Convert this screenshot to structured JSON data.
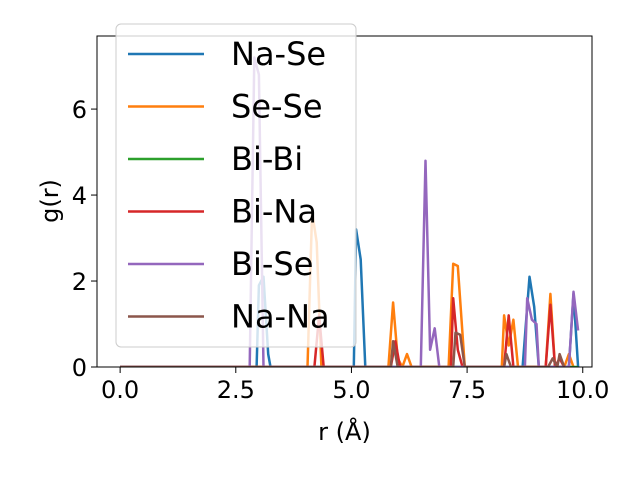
{
  "chart_data": {
    "type": "line",
    "title": "",
    "xlabel": "r (Å)",
    "ylabel": "g(r)",
    "xlim": [
      -0.5,
      10.2
    ],
    "ylim": [
      0,
      7.7
    ],
    "xticks": [
      0.0,
      2.5,
      5.0,
      7.5,
      10.0
    ],
    "xtick_labels": [
      "0.0",
      "2.5",
      "5.0",
      "7.5",
      "10.0"
    ],
    "yticks": [
      0,
      2,
      4,
      6
    ],
    "ytick_labels": [
      "0",
      "2",
      "4",
      "6"
    ],
    "grid": false,
    "legend_position": "top-left",
    "series": [
      {
        "name": "Na-Se",
        "color": "#1f77b4",
        "points": [
          [
            0,
            0
          ],
          [
            2.95,
            0
          ],
          [
            3.0,
            1.9
          ],
          [
            3.1,
            2.1
          ],
          [
            3.2,
            0.3
          ],
          [
            3.25,
            0
          ],
          [
            5.05,
            0
          ],
          [
            5.1,
            3.2
          ],
          [
            5.2,
            2.5
          ],
          [
            5.3,
            0
          ],
          [
            8.7,
            0
          ],
          [
            8.85,
            2.1
          ],
          [
            8.95,
            1.4
          ],
          [
            9.05,
            0
          ],
          [
            9.7,
            0
          ],
          [
            9.8,
            1.7
          ],
          [
            9.9,
            0
          ]
        ]
      },
      {
        "name": "Se-Se",
        "color": "#ff7f0e",
        "points": [
          [
            0,
            0
          ],
          [
            4.05,
            0
          ],
          [
            4.15,
            3.6
          ],
          [
            4.25,
            2.9
          ],
          [
            4.35,
            0
          ],
          [
            5.8,
            0
          ],
          [
            5.9,
            1.5
          ],
          [
            6.0,
            0.2
          ],
          [
            6.1,
            0
          ],
          [
            6.2,
            0.3
          ],
          [
            6.3,
            0
          ],
          [
            7.1,
            0
          ],
          [
            7.2,
            2.4
          ],
          [
            7.3,
            2.35
          ],
          [
            7.45,
            0
          ],
          [
            8.25,
            0
          ],
          [
            8.3,
            1.2
          ],
          [
            8.4,
            0.5
          ],
          [
            8.5,
            1.1
          ],
          [
            8.6,
            0
          ],
          [
            9.2,
            0
          ],
          [
            9.3,
            1.7
          ],
          [
            9.4,
            0
          ],
          [
            9.6,
            0
          ],
          [
            9.7,
            0.3
          ],
          [
            9.8,
            0
          ]
        ]
      },
      {
        "name": "Bi-Bi",
        "color": "#2ca02c",
        "points": [
          [
            0,
            0
          ],
          [
            9.9,
            0
          ]
        ]
      },
      {
        "name": "Bi-Na",
        "color": "#d62728",
        "points": [
          [
            0,
            0
          ],
          [
            4.2,
            0
          ],
          [
            4.3,
            1.2
          ],
          [
            4.4,
            0
          ],
          [
            5.85,
            0
          ],
          [
            5.95,
            0.6
          ],
          [
            6.05,
            0
          ],
          [
            7.15,
            0
          ],
          [
            7.2,
            1.6
          ],
          [
            7.3,
            0.4
          ],
          [
            7.4,
            0
          ],
          [
            8.3,
            0
          ],
          [
            8.4,
            1.2
          ],
          [
            8.5,
            0
          ],
          [
            9.2,
            0
          ],
          [
            9.3,
            1.45
          ],
          [
            9.4,
            0
          ],
          [
            9.5,
            0.2
          ],
          [
            9.6,
            0
          ]
        ]
      },
      {
        "name": "Bi-Se",
        "color": "#9467bd",
        "points": [
          [
            0,
            0
          ],
          [
            2.8,
            0
          ],
          [
            2.9,
            7.2
          ],
          [
            3.0,
            6.8
          ],
          [
            3.1,
            0
          ],
          [
            6.5,
            0
          ],
          [
            6.6,
            4.8
          ],
          [
            6.7,
            0.4
          ],
          [
            6.8,
            0.9
          ],
          [
            6.9,
            0
          ],
          [
            8.75,
            0
          ],
          [
            8.8,
            1.6
          ],
          [
            8.9,
            1.1
          ],
          [
            9.0,
            1.0
          ],
          [
            9.05,
            0
          ],
          [
            9.7,
            0
          ],
          [
            9.8,
            1.75
          ],
          [
            9.9,
            0.85
          ]
        ]
      },
      {
        "name": "Na-Na",
        "color": "#8c564b",
        "points": [
          [
            0,
            0
          ],
          [
            5.85,
            0
          ],
          [
            5.9,
            0.6
          ],
          [
            6.0,
            0
          ],
          [
            7.2,
            0
          ],
          [
            7.25,
            0.8
          ],
          [
            7.35,
            0.75
          ],
          [
            7.45,
            0
          ],
          [
            8.3,
            0
          ],
          [
            8.35,
            0.3
          ],
          [
            8.45,
            0
          ],
          [
            9.25,
            0
          ],
          [
            9.35,
            0.2
          ],
          [
            9.45,
            0
          ],
          [
            9.5,
            0.3
          ],
          [
            9.6,
            0
          ]
        ]
      }
    ]
  }
}
